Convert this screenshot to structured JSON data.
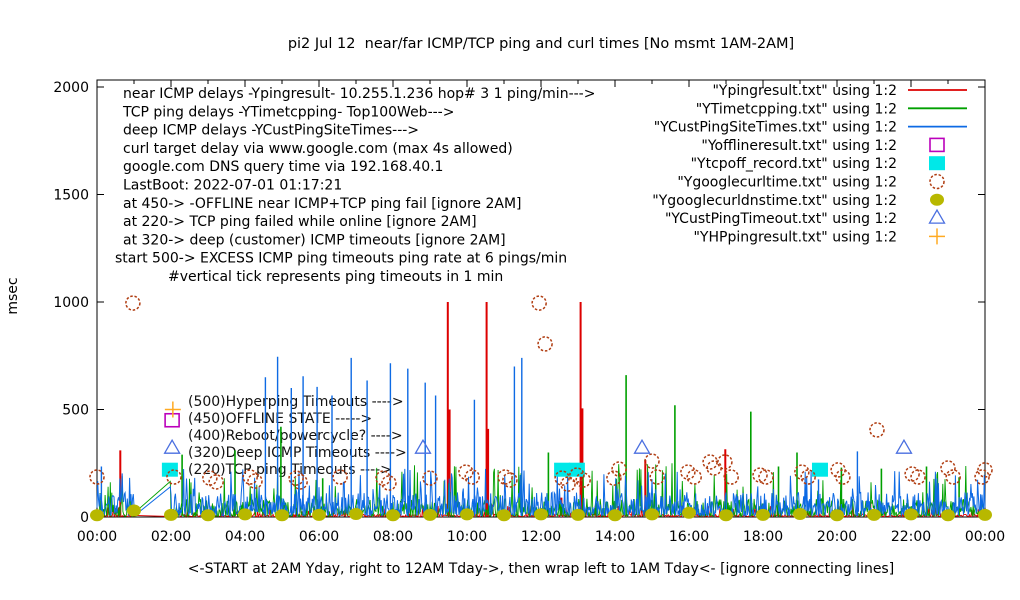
{
  "title": "pi2 Jul 12  near/far ICMP/TCP ping and curl times [No msmt 1AM-2AM]",
  "ylabel": "msec",
  "xlabel": "<-START at 2AM Yday, right to 12AM Tday->, then wrap left to 1AM Tday<- [ignore connecting lines]",
  "notes": [
    "near ICMP delays -Ypingresult- 10.255.1.236 hop# 3 1 ping/min--->",
    "TCP ping delays -YTimetcpping- Top100Web--->",
    "deep ICMP delays -YCustPingSiteTimes--->",
    "curl target delay via www.google.com (max 4s allowed)",
    "google.com DNS query time via 192.168.40.1",
    "LastBoot: 2022-07-01 01:17:21",
    "at 450-> -OFFLINE near ICMP+TCP ping fail [ignore 2AM]",
    "at 220-> TCP ping failed while online [ignore 2AM]",
    "at 320-> deep (customer) ICMP timeouts [ignore 2AM]",
    "start 500-> EXCESS ICMP ping timeouts ping rate at 6 pings/min",
    "#vertical tick represents ping timeouts in 1 min"
  ],
  "inplot_labels": [
    "(500)Hyperping Timeouts ---->",
    "(450)OFFLINE STATE ----->",
    "(400)Reboot/powercycle? ---->",
    "(320)Deep ICMP Timeouts ---->",
    "(220)TCP ping Timeouts ---->"
  ],
  "legend": [
    {
      "label": "\"Ypingresult.txt\" using 1:2",
      "sample": "line",
      "color": "#dd0000"
    },
    {
      "label": "\"YTimetcpping.txt\" using 1:2",
      "sample": "line",
      "color": "#00a000"
    },
    {
      "label": "\"YCustPingSiteTimes.txt\" using 1:2",
      "sample": "line",
      "color": "#0d6ae4"
    },
    {
      "label": "\"Yofflineresult.txt\" using 1:2",
      "sample": "open-square",
      "color": "#bb00bb"
    },
    {
      "label": "\"Ytcpoff_record.txt\" using 1:2",
      "sample": "filled-square",
      "color": "#00e8e8"
    },
    {
      "label": "\"Ygooglecurltime.txt\" using 1:2",
      "sample": "open-circle",
      "color": "#b03c10"
    },
    {
      "label": "\"Ygooglecurldnstime.txt\" using 1:2",
      "sample": "filled-circle",
      "color": "#b8b800"
    },
    {
      "label": "\"YCustPingTimeout.txt\" using 1:2",
      "sample": "open-triangle",
      "color": "#4a6fe0"
    },
    {
      "label": "\"YHPpingresult.txt\" using 1:2",
      "sample": "plus",
      "color": "#ffaa22"
    }
  ],
  "chart_data": {
    "type": "line+scatter time series",
    "x_unit": "time of day (hours 0-24)",
    "x_tick_labels": [
      "00:00",
      "02:00",
      "04:00",
      "06:00",
      "08:00",
      "10:00",
      "12:00",
      "14:00",
      "16:00",
      "18:00",
      "20:00",
      "22:00",
      "00:00"
    ],
    "y_ticks": [
      0,
      500,
      1000,
      1500,
      2000
    ],
    "ylim": [
      0,
      2000
    ],
    "xlim_hours": [
      0,
      24
    ],
    "grid": false,
    "legend_position": "top-right-inside",
    "measurement_gap_hours": [
      1.03,
      1.97
    ],
    "line_series": [
      {
        "name": "Ypingresult (near ICMP delays)",
        "color": "#dd0000",
        "noise": {
          "min": 2,
          "max": 13,
          "pow": 2.0,
          "burst_p": 0.1,
          "burst": [
            15,
            55
          ],
          "seed": 11
        },
        "spikes": [
          [
            0.63,
            310
          ],
          [
            9.48,
            1000
          ],
          [
            9.53,
            500
          ],
          [
            10.53,
            1000
          ],
          [
            10.57,
            410
          ],
          [
            12.55,
            90
          ],
          [
            13.07,
            1000
          ],
          [
            13.12,
            505
          ],
          [
            14.82,
            265
          ],
          [
            16.98,
            315
          ],
          [
            20.9,
            70
          ]
        ]
      },
      {
        "name": "YTimetcpping (TCP ping delays)",
        "color": "#00a000",
        "noise": {
          "min": 3,
          "max": 85,
          "pow": 2.2,
          "burst_p": 0.05,
          "burst": [
            95,
            250
          ],
          "seed": 22
        },
        "spikes": [
          [
            2.3,
            290
          ],
          [
            3.73,
            310
          ],
          [
            4.97,
            420
          ],
          [
            6.1,
            180
          ],
          [
            12.2,
            300
          ],
          [
            14.3,
            660
          ],
          [
            15.62,
            520
          ],
          [
            17.67,
            490
          ],
          [
            18.42,
            235
          ],
          [
            18.92,
            300
          ],
          [
            20.12,
            230
          ],
          [
            21.2,
            225
          ],
          [
            22.42,
            235
          ],
          [
            23.3,
            185
          ]
        ]
      },
      {
        "name": "YCustPingSiteTimes (deep ICMP delays)",
        "color": "#0d6ae4",
        "noise": {
          "min": 6,
          "max": 115,
          "pow": 1.8,
          "burst_p": 0.06,
          "burst": [
            120,
            225
          ],
          "seed": 33
        },
        "spikes": [
          [
            0.12,
            235
          ],
          [
            4.55,
            650
          ],
          [
            4.88,
            745
          ],
          [
            5.25,
            600
          ],
          [
            5.57,
            655
          ],
          [
            5.95,
            605
          ],
          [
            6.35,
            565
          ],
          [
            6.87,
            740
          ],
          [
            7.3,
            635
          ],
          [
            7.93,
            715
          ],
          [
            8.4,
            690
          ],
          [
            8.87,
            625
          ],
          [
            9.15,
            565
          ],
          [
            10.2,
            545
          ],
          [
            11.28,
            700
          ],
          [
            11.48,
            740
          ],
          [
            19.5,
            175
          ],
          [
            20.55,
            305
          ]
        ]
      }
    ],
    "scatter_series": [
      {
        "name": "Yofflineresult (OFFLINE state)",
        "marker": "open-square",
        "color": "#bb00bb",
        "points": [
          [
            2.03,
            450
          ]
        ]
      },
      {
        "name": "Ytcpoff_record (TCP ping timeouts)",
        "marker": "filled-square",
        "color": "#00e8e8",
        "points": [
          [
            1.97,
            220
          ],
          [
            12.57,
            220
          ],
          [
            12.97,
            220
          ],
          [
            19.54,
            220
          ]
        ]
      },
      {
        "name": "Ygooglecurltime (curl target delay)",
        "marker": "open-circle",
        "color": "#b03c10",
        "points": [
          [
            0.0,
            186
          ],
          [
            0.97,
            995
          ],
          [
            2.08,
            186
          ],
          [
            3.05,
            181
          ],
          [
            3.22,
            163
          ],
          [
            4.14,
            186
          ],
          [
            4.27,
            167
          ],
          [
            5.38,
            181
          ],
          [
            5.49,
            163
          ],
          [
            6.57,
            186
          ],
          [
            7.73,
            181
          ],
          [
            7.89,
            158
          ],
          [
            9.0,
            181
          ],
          [
            9.97,
            209
          ],
          [
            10.14,
            186
          ],
          [
            11.03,
            186
          ],
          [
            11.16,
            172
          ],
          [
            11.95,
            995
          ],
          [
            12.11,
            805
          ],
          [
            12.57,
            181
          ],
          [
            12.73,
            153
          ],
          [
            12.97,
            195
          ],
          [
            13.14,
            172
          ],
          [
            13.97,
            181
          ],
          [
            14.11,
            223
          ],
          [
            15.0,
            260
          ],
          [
            15.14,
            186
          ],
          [
            15.97,
            209
          ],
          [
            16.14,
            186
          ],
          [
            16.57,
            256
          ],
          [
            16.68,
            228
          ],
          [
            16.97,
            256
          ],
          [
            17.14,
            186
          ],
          [
            17.92,
            195
          ],
          [
            18.08,
            186
          ],
          [
            19.05,
            209
          ],
          [
            19.22,
            186
          ],
          [
            20.03,
            219
          ],
          [
            20.16,
            186
          ],
          [
            21.08,
            405
          ],
          [
            22.03,
            200
          ],
          [
            22.19,
            186
          ],
          [
            23.0,
            228
          ],
          [
            23.14,
            186
          ],
          [
            23.92,
            186
          ],
          [
            24.0,
            219
          ]
        ]
      },
      {
        "name": "Ygooglecurldnstime (google DNS query time)",
        "marker": "filled-circle",
        "color": "#b8b800",
        "points": [
          [
            0,
            8
          ],
          [
            1,
            30
          ],
          [
            2,
            10
          ],
          [
            3,
            8
          ],
          [
            4,
            12
          ],
          [
            5,
            8
          ],
          [
            6,
            10
          ],
          [
            7,
            14
          ],
          [
            8,
            8
          ],
          [
            9,
            10
          ],
          [
            10,
            12
          ],
          [
            11,
            8
          ],
          [
            12,
            12
          ],
          [
            13,
            10
          ],
          [
            14,
            8
          ],
          [
            15,
            12
          ],
          [
            16,
            20
          ],
          [
            17,
            8
          ],
          [
            18,
            10
          ],
          [
            19,
            14
          ],
          [
            20,
            8
          ],
          [
            21,
            10
          ],
          [
            22,
            12
          ],
          [
            23,
            8
          ],
          [
            24,
            10
          ]
        ]
      },
      {
        "name": "YCustPingTimeout (deep ICMP timeouts)",
        "marker": "open-triangle",
        "color": "#4a6fe0",
        "points": [
          [
            2.03,
            320
          ],
          [
            8.81,
            320
          ],
          [
            14.73,
            320
          ],
          [
            21.81,
            320
          ]
        ]
      },
      {
        "name": "YHPpingresult (hyperping timeouts)",
        "marker": "plus",
        "color": "#ffaa22",
        "points": [
          [
            2.05,
            500
          ]
        ]
      }
    ]
  }
}
